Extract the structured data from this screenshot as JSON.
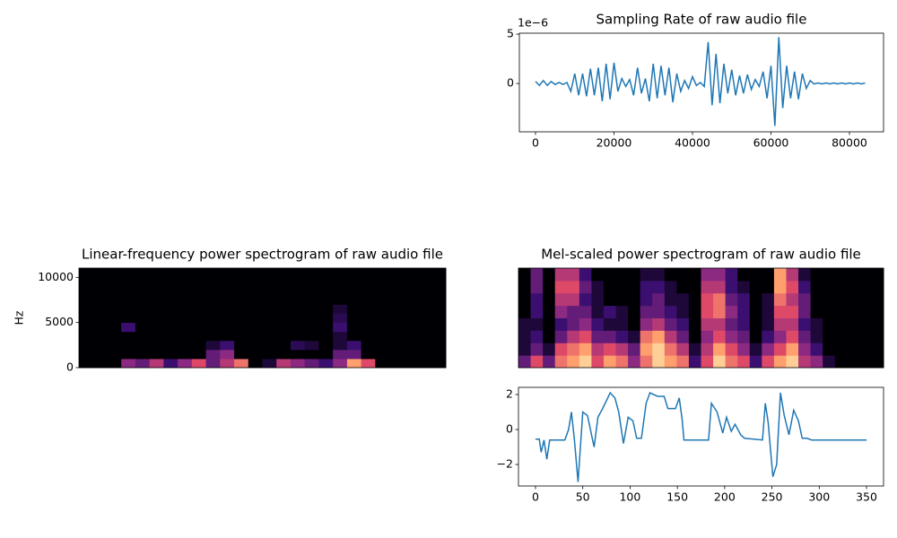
{
  "chart_data": [
    {
      "type": "line",
      "title": "Sampling Rate of raw audio file",
      "y_offset_label": "1e−6",
      "color": "#1f77b4",
      "x": [
        0,
        1000,
        2000,
        3000,
        4000,
        5000,
        6000,
        7000,
        8000,
        9000,
        10000,
        11000,
        12000,
        13000,
        14000,
        15000,
        16000,
        17000,
        18000,
        19000,
        20000,
        21000,
        22000,
        23000,
        24000,
        25000,
        26000,
        27000,
        28000,
        29000,
        30000,
        31000,
        32000,
        33000,
        34000,
        35000,
        36000,
        37000,
        38000,
        39000,
        40000,
        41000,
        42000,
        43000,
        44000,
        45000,
        46000,
        47000,
        48000,
        49000,
        50000,
        51000,
        52000,
        53000,
        54000,
        55000,
        56000,
        57000,
        58000,
        59000,
        60000,
        61000,
        62000,
        63000,
        64000,
        65000,
        66000,
        67000,
        68000,
        69000,
        70000,
        71000,
        72000,
        73000,
        74000,
        75000,
        76000,
        77000,
        78000,
        79000,
        80000,
        81000,
        82000,
        83000,
        84000
      ],
      "values": [
        0.2,
        -0.2,
        0.3,
        -0.2,
        0.2,
        -0.1,
        0.1,
        -0.1,
        0.1,
        -0.8,
        1.0,
        -1.2,
        1.0,
        -1.3,
        1.5,
        -1.2,
        1.6,
        -1.8,
        2.0,
        -1.6,
        2.1,
        -0.8,
        0.5,
        -0.3,
        0.4,
        -1.2,
        1.6,
        -1.0,
        0.5,
        -1.8,
        2.0,
        -1.5,
        1.8,
        -1.2,
        1.6,
        -1.9,
        1.0,
        -0.8,
        0.3,
        -0.5,
        0.7,
        -0.2,
        0.1,
        -0.3,
        4.2,
        -2.2,
        3.0,
        -2.0,
        2.0,
        -1.0,
        1.4,
        -1.2,
        0.8,
        -1.0,
        0.9,
        -0.6,
        0.4,
        -0.3,
        1.2,
        -1.5,
        1.8,
        -4.3,
        4.7,
        -2.5,
        1.8,
        -1.5,
        1.2,
        -1.6,
        1.0,
        -0.5,
        0.3,
        -0.05,
        0.05,
        -0.05,
        0.05,
        -0.05,
        0.05,
        -0.05,
        0.05,
        -0.05,
        0.05,
        -0.05,
        0.05,
        -0.05,
        0.05
      ],
      "xlim": [
        -4114,
        88686
      ],
      "xticks": [
        0,
        20000,
        40000,
        60000,
        80000
      ],
      "ylim": [
        -4.9,
        5.1
      ],
      "yticks": [
        0,
        5
      ]
    },
    {
      "type": "heatmap",
      "title": "Linear-frequency power spectrogram of raw audio file",
      "ylabel": "Hz",
      "colormap": [
        "#000004",
        "#3b0f70",
        "#8c2981",
        "#de4968",
        "#fe9f6d",
        "#fcfdbf"
      ],
      "ylim": [
        0,
        11025
      ],
      "yticks": [
        0,
        5000,
        10000
      ],
      "values": [
        [
          0,
          0,
          0,
          0.4,
          0.3,
          0.5,
          0.2,
          0.4,
          0.6,
          0.3,
          0.5,
          0.7,
          0,
          0.1,
          0.5,
          0.4,
          0.3,
          0.2,
          0.4,
          0.8,
          0.6,
          0,
          0,
          0,
          0,
          0
        ],
        [
          0,
          0,
          0,
          0,
          0,
          0,
          0,
          0,
          0,
          0.3,
          0.4,
          0,
          0,
          0,
          0,
          0,
          0,
          0,
          0.3,
          0.3,
          0,
          0,
          0,
          0,
          0,
          0
        ],
        [
          0,
          0,
          0,
          0,
          0,
          0,
          0,
          0,
          0,
          0.1,
          0.2,
          0,
          0,
          0,
          0,
          0.15,
          0.1,
          0,
          0.1,
          0.2,
          0,
          0,
          0,
          0,
          0,
          0
        ],
        [
          0,
          0,
          0,
          0,
          0,
          0,
          0,
          0,
          0,
          0,
          0,
          0,
          0,
          0,
          0,
          0,
          0,
          0,
          0.1,
          0,
          0,
          0,
          0,
          0,
          0,
          0
        ],
        [
          0,
          0,
          0,
          0.2,
          0,
          0,
          0,
          0,
          0,
          0,
          0,
          0,
          0,
          0,
          0,
          0,
          0,
          0,
          0.2,
          0,
          0,
          0,
          0,
          0,
          0,
          0
        ],
        [
          0,
          0,
          0,
          0,
          0,
          0,
          0,
          0,
          0,
          0,
          0,
          0,
          0,
          0,
          0,
          0,
          0,
          0,
          0.15,
          0,
          0,
          0,
          0,
          0,
          0,
          0
        ],
        [
          0,
          0,
          0,
          0,
          0,
          0,
          0,
          0,
          0,
          0,
          0,
          0,
          0,
          0,
          0,
          0,
          0,
          0,
          0.1,
          0,
          0,
          0,
          0,
          0,
          0,
          0
        ],
        [
          0,
          0,
          0,
          0,
          0,
          0,
          0,
          0,
          0,
          0,
          0,
          0,
          0,
          0,
          0,
          0,
          0,
          0,
          0,
          0,
          0,
          0,
          0,
          0,
          0,
          0
        ],
        [
          0,
          0,
          0,
          0,
          0,
          0,
          0,
          0,
          0,
          0,
          0,
          0,
          0,
          0,
          0,
          0,
          0,
          0,
          0,
          0,
          0,
          0,
          0,
          0,
          0,
          0
        ],
        [
          0,
          0,
          0,
          0,
          0,
          0,
          0,
          0,
          0,
          0,
          0,
          0,
          0,
          0,
          0,
          0,
          0,
          0,
          0,
          0,
          0,
          0,
          0,
          0,
          0,
          0
        ],
        [
          0,
          0,
          0,
          0,
          0,
          0,
          0,
          0,
          0,
          0,
          0,
          0,
          0,
          0,
          0,
          0,
          0,
          0,
          0,
          0,
          0,
          0,
          0,
          0,
          0,
          0
        ]
      ]
    },
    {
      "type": "heatmap",
      "title": "Mel-scaled power spectrogram of raw audio file",
      "colormap": [
        "#000004",
        "#3b0f70",
        "#8c2981",
        "#de4968",
        "#fe9f6d",
        "#fcfdbf"
      ],
      "values": [
        [
          0.3,
          0.6,
          0.3,
          0.7,
          0.8,
          0.9,
          0.6,
          0.8,
          0.7,
          0.4,
          0.7,
          0.9,
          0.8,
          0.7,
          0.2,
          0.6,
          0.9,
          0.7,
          0.6,
          0.2,
          0.6,
          0.8,
          0.9,
          0.5,
          0.4,
          0.1,
          0,
          0,
          0,
          0
        ],
        [
          0.1,
          0.3,
          0.1,
          0.6,
          0.7,
          0.8,
          0.5,
          0.6,
          0.5,
          0.3,
          0.8,
          0.9,
          0.7,
          0.5,
          0.1,
          0.5,
          0.8,
          0.6,
          0.4,
          0.1,
          0.4,
          0.6,
          0.8,
          0.4,
          0.2,
          0,
          0,
          0,
          0,
          0
        ],
        [
          0.1,
          0.2,
          0,
          0.3,
          0.5,
          0.6,
          0.3,
          0.3,
          0.2,
          0.1,
          0.7,
          0.8,
          0.5,
          0.3,
          0,
          0.4,
          0.6,
          0.4,
          0.3,
          0,
          0.2,
          0.4,
          0.6,
          0.3,
          0.1,
          0,
          0,
          0,
          0,
          0
        ],
        [
          0.1,
          0.1,
          0,
          0.2,
          0.3,
          0.4,
          0.2,
          0.1,
          0.1,
          0,
          0.4,
          0.5,
          0.3,
          0.2,
          0,
          0.5,
          0.5,
          0.3,
          0.2,
          0,
          0.1,
          0.5,
          0.5,
          0.2,
          0.1,
          0,
          0,
          0,
          0,
          0
        ],
        [
          0,
          0.2,
          0,
          0.4,
          0.3,
          0.3,
          0.1,
          0.2,
          0.1,
          0,
          0.3,
          0.3,
          0.2,
          0.1,
          0,
          0.6,
          0.7,
          0.4,
          0.2,
          0,
          0.1,
          0.6,
          0.6,
          0.3,
          0,
          0,
          0,
          0,
          0,
          0
        ],
        [
          0,
          0.2,
          0,
          0.5,
          0.5,
          0.2,
          0.1,
          0,
          0,
          0,
          0.2,
          0.3,
          0.1,
          0.1,
          0,
          0.6,
          0.7,
          0.3,
          0.2,
          0,
          0.1,
          0.7,
          0.5,
          0.3,
          0,
          0,
          0,
          0,
          0,
          0
        ],
        [
          0,
          0.3,
          0,
          0.6,
          0.6,
          0.3,
          0.1,
          0,
          0,
          0,
          0.2,
          0.2,
          0.1,
          0,
          0,
          0.5,
          0.5,
          0.2,
          0.1,
          0,
          0,
          0.8,
          0.6,
          0.2,
          0,
          0,
          0,
          0,
          0,
          0
        ],
        [
          0,
          0.3,
          0,
          0.5,
          0.5,
          0.2,
          0,
          0,
          0,
          0,
          0.1,
          0.1,
          0,
          0,
          0,
          0.4,
          0.4,
          0.2,
          0,
          0,
          0,
          0.8,
          0.5,
          0.1,
          0,
          0,
          0,
          0,
          0,
          0
        ]
      ]
    },
    {
      "type": "line",
      "color": "#1f77b4",
      "x": [
        0,
        4,
        6,
        9,
        12,
        15,
        31,
        35,
        38,
        41,
        45,
        50,
        55,
        60,
        62,
        66,
        71,
        79,
        84,
        88,
        93,
        98,
        103,
        107,
        112,
        117,
        121,
        129,
        136,
        140,
        148,
        152,
        155,
        157,
        183,
        186,
        192,
        198,
        202,
        207,
        211,
        217,
        221,
        240,
        243,
        246,
        251,
        255,
        259,
        263,
        268,
        273,
        278,
        282,
        287,
        292,
        350
      ],
      "values": [
        -0.55,
        -0.55,
        -1.3,
        -0.6,
        -1.7,
        -0.6,
        -0.6,
        0.0,
        1.0,
        -0.5,
        -3.0,
        1.0,
        0.8,
        -0.5,
        -1.0,
        0.7,
        1.2,
        2.1,
        1.8,
        1.0,
        -0.8,
        0.7,
        0.5,
        -0.5,
        -0.5,
        1.5,
        2.1,
        1.9,
        1.9,
        1.2,
        1.2,
        1.8,
        0.6,
        -0.6,
        -0.6,
        1.5,
        1.0,
        -0.2,
        0.7,
        -0.1,
        0.3,
        -0.3,
        -0.5,
        -0.6,
        1.5,
        0.4,
        -2.7,
        -2.0,
        2.1,
        0.8,
        -0.3,
        1.1,
        0.5,
        -0.5,
        -0.5,
        -0.6,
        -0.6
      ],
      "xlim": [
        -18,
        368
      ],
      "xticks": [
        0,
        50,
        100,
        150,
        200,
        250,
        300,
        350
      ],
      "ylim": [
        -3.23,
        2.41
      ],
      "yticks": [
        {
          "value": -2,
          "label": "−2"
        },
        0,
        2
      ]
    }
  ]
}
